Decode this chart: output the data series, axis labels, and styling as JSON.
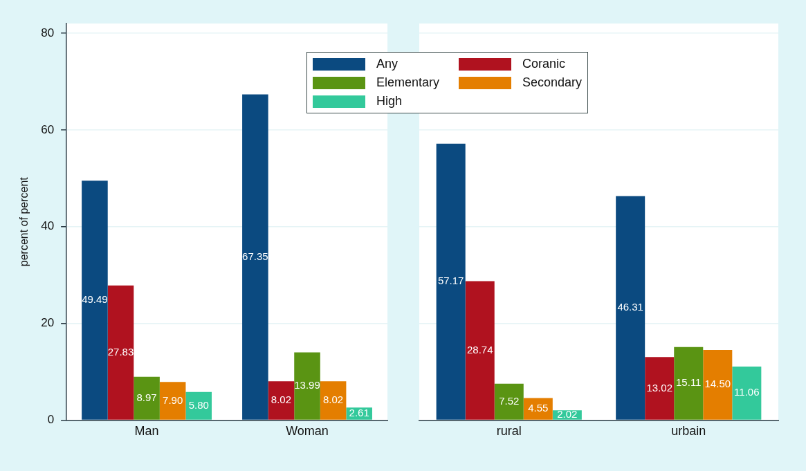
{
  "chart_data": [
    {
      "type": "bar",
      "ylabel": "percent of percent",
      "categories": [
        "Man",
        "Woman"
      ],
      "ylim": [
        0,
        82
      ],
      "yticks": [
        0,
        20,
        40,
        60,
        80
      ],
      "grid": "y",
      "legend": "top right",
      "series": [
        {
          "name": "Any",
          "color": "#0b4a80",
          "values": [
            49.49,
            67.35
          ],
          "value_labels": [
            "49.49",
            "67.35"
          ]
        },
        {
          "name": "Coranic",
          "color": "#b0121f",
          "values": [
            27.83,
            8.02
          ],
          "value_labels": [
            "27.83",
            "8.02"
          ]
        },
        {
          "name": "Elementary",
          "color": "#5a9413",
          "values": [
            8.97,
            13.99
          ],
          "value_labels": [
            "8.97",
            "13.99"
          ]
        },
        {
          "name": "Secondary",
          "color": "#e47e00",
          "values": [
            7.9,
            8.02
          ],
          "value_labels": [
            "7.90",
            "8.02"
          ]
        },
        {
          "name": "High",
          "color": "#33c99b",
          "values": [
            5.8,
            2.61
          ],
          "value_labels": [
            "5.80",
            "2.61"
          ]
        }
      ]
    },
    {
      "type": "bar",
      "categories": [
        "rural",
        "urbain"
      ],
      "ylim": [
        0,
        82
      ],
      "yticks": [
        0,
        20,
        40,
        60,
        80
      ],
      "grid": "y",
      "tick_labels": "x",
      "series": [
        {
          "color": "#0b4a80",
          "values": [
            57.17,
            46.31
          ],
          "value_labels": [
            "57.17",
            "46.31"
          ]
        },
        {
          "color": "#b0121f",
          "values": [
            28.74,
            13.02
          ],
          "value_labels": [
            "28.74",
            "13.02"
          ]
        },
        {
          "color": "#5a9413",
          "values": [
            7.52,
            15.11
          ],
          "value_labels": [
            "7.52",
            "15.11"
          ]
        },
        {
          "color": "#e47e00",
          "values": [
            4.55,
            14.5
          ],
          "value_labels": [
            "4.55",
            "14.50"
          ]
        },
        {
          "color": "#33c99b",
          "values": [
            2.02,
            11.06
          ],
          "value_labels": [
            "2.02",
            "11.06"
          ]
        }
      ]
    }
  ]
}
